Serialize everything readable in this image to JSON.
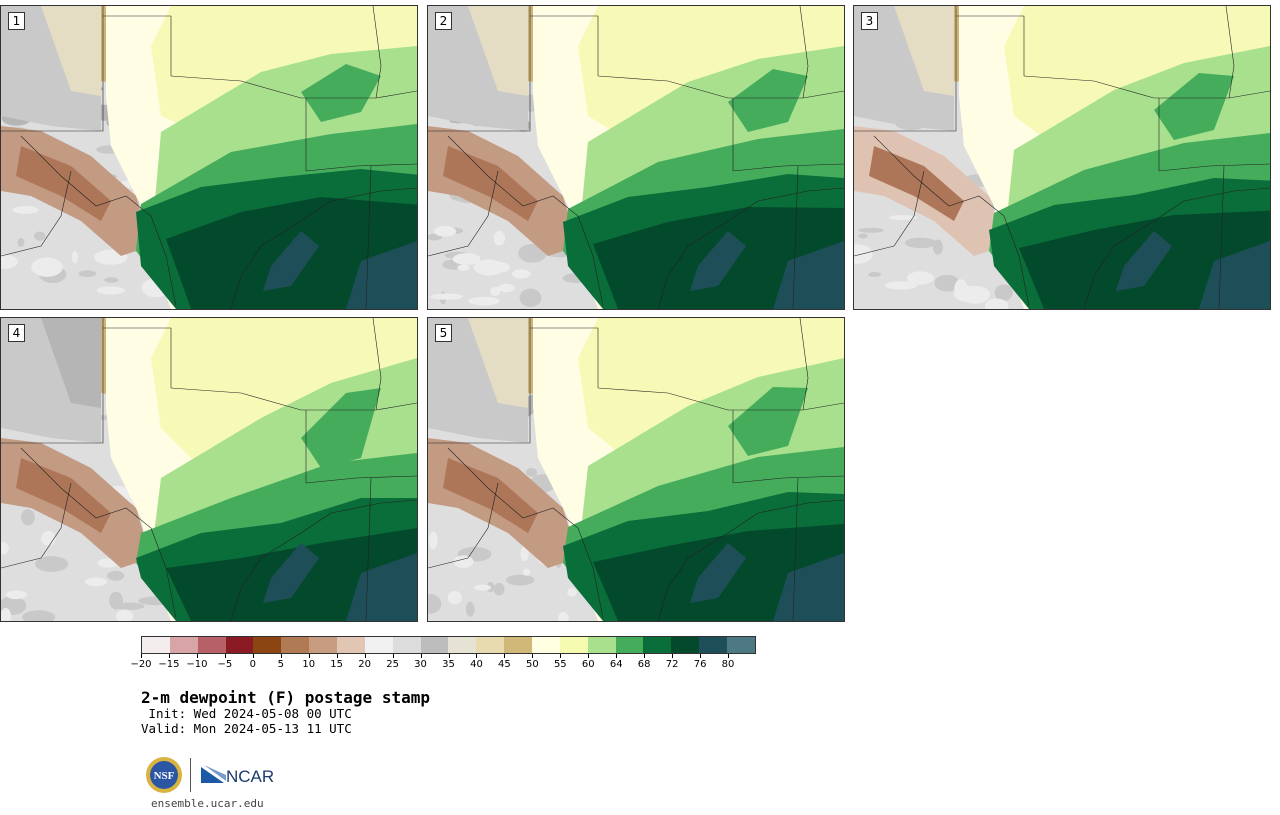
{
  "panels": [
    {
      "label": "1",
      "variant": 0
    },
    {
      "label": "2",
      "variant": 1
    },
    {
      "label": "3",
      "variant": 2
    },
    {
      "label": "4",
      "variant": 3
    },
    {
      "label": "5",
      "variant": 4
    }
  ],
  "colorbar": {
    "colors": [
      "#f3eded",
      "#d8a4a8",
      "#b86068",
      "#8a1b24",
      "#8b4513",
      "#b07a55",
      "#c89c80",
      "#e2c6b4",
      "#f0f0f0",
      "#dcdcdc",
      "#bdbdbd",
      "#e6e3d4",
      "#e8dbb0",
      "#d0b878",
      "#ffffe2",
      "#f6fbb2",
      "#a9e08e",
      "#45ac5c",
      "#0a6e3a",
      "#034a2c",
      "#1e4f58",
      "#4d7a82"
    ],
    "tick_labels": [
      "−20",
      "−15",
      "−10",
      "−5",
      "0",
      "5",
      "10",
      "15",
      "20",
      "25",
      "30",
      "35",
      "40",
      "45",
      "50",
      "55",
      "60",
      "64",
      "68",
      "72",
      "76",
      "80"
    ]
  },
  "title": "2-m dewpoint (F) postage stamp",
  "init_line": " Init: Wed 2024-05-08 00 UTC",
  "valid_line": "Valid: Mon 2024-05-13 11 UTC",
  "footer": {
    "url": "ensemble.ucar.edu",
    "logo_nsf": "NSF",
    "logo_ncar": "NCAR"
  }
}
